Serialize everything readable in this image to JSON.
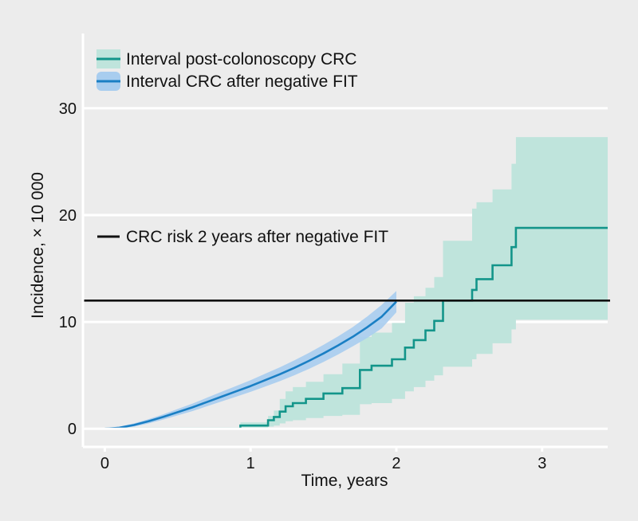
{
  "chart_data": {
    "type": "line",
    "title": "",
    "xlabel": "Time, years",
    "ylabel": "Incidence, × 10 000",
    "xlim": [
      -0.15,
      3.45
    ],
    "ylim": [
      -1.7,
      37
    ],
    "xticks": [
      0,
      1,
      2,
      3
    ],
    "xtick_labels": [
      "0",
      "1",
      "2",
      "3"
    ],
    "yticks": [
      0,
      10,
      20,
      30
    ],
    "ytick_labels": [
      "0",
      "10",
      "20",
      "30"
    ],
    "grid": "horizontal",
    "legend": "top-left",
    "colors": {
      "teal": "#13958a",
      "teal_band": "#bfe4dc",
      "blue": "#1a7fc4",
      "blue_band": "#a8cdef",
      "reference": "#111111",
      "grid": "#ffffff",
      "background": "#ececec"
    },
    "series": [
      {
        "name": "Interval post-colonoscopy CRC",
        "style": "step",
        "x": [
          0,
          0.93,
          1.12,
          1.16,
          1.2,
          1.24,
          1.29,
          1.38,
          1.5,
          1.63,
          1.75,
          1.83,
          1.97,
          2.06,
          2.12,
          2.2,
          2.26,
          2.32,
          2.35,
          2.52,
          2.55,
          2.66,
          2.79,
          2.82,
          3.45
        ],
        "y": [
          0,
          0.3,
          0.8,
          1.1,
          1.6,
          2.1,
          2.4,
          2.8,
          3.3,
          3.8,
          5.5,
          5.9,
          6.5,
          7.6,
          8.3,
          9.2,
          10.1,
          12,
          12,
          13,
          14,
          15.3,
          17,
          18.8,
          18.8
        ],
        "ci_lower": [
          0,
          0.1,
          0.2,
          0.3,
          0.5,
          0.7,
          0.8,
          1.0,
          1.2,
          1.3,
          2.3,
          2.4,
          2.8,
          3.5,
          3.9,
          4.5,
          5.0,
          5.8,
          5.8,
          6.5,
          7.0,
          8.0,
          9.3,
          10.2,
          10.2
        ],
        "ci_upper": [
          0,
          0.6,
          1.2,
          1.7,
          2.8,
          3.5,
          3.9,
          4.4,
          5.1,
          6.1,
          8.6,
          9.0,
          9.9,
          11.8,
          12.4,
          13.2,
          14.2,
          17.6,
          17.6,
          20.6,
          21.2,
          22.4,
          24.8,
          27.3,
          27.3
        ]
      },
      {
        "name": "Interval CRC after negative FIT",
        "style": "line",
        "x": [
          0,
          0.1,
          0.2,
          0.3,
          0.4,
          0.5,
          0.6,
          0.7,
          0.8,
          0.9,
          1.0,
          1.1,
          1.2,
          1.3,
          1.4,
          1.5,
          1.6,
          1.7,
          1.8,
          1.9,
          2.0
        ],
        "y": [
          0,
          0.1,
          0.35,
          0.7,
          1.1,
          1.55,
          2.0,
          2.5,
          3.0,
          3.5,
          4.0,
          4.55,
          5.1,
          5.7,
          6.35,
          7.05,
          7.8,
          8.6,
          9.5,
          10.5,
          11.9
        ],
        "ci_lower": [
          0,
          0.02,
          0.2,
          0.5,
          0.85,
          1.25,
          1.65,
          2.1,
          2.55,
          3.0,
          3.45,
          3.95,
          4.45,
          5.0,
          5.6,
          6.25,
          6.95,
          7.7,
          8.5,
          9.4,
          10.9
        ],
        "ci_upper": [
          0,
          0.2,
          0.5,
          0.9,
          1.35,
          1.85,
          2.35,
          2.9,
          3.45,
          4.0,
          4.55,
          5.15,
          5.75,
          6.4,
          7.1,
          7.85,
          8.65,
          9.5,
          10.5,
          11.6,
          12.9
        ]
      }
    ],
    "reference_line": {
      "label": "CRC risk 2 years after negative FIT",
      "y": 12
    }
  }
}
